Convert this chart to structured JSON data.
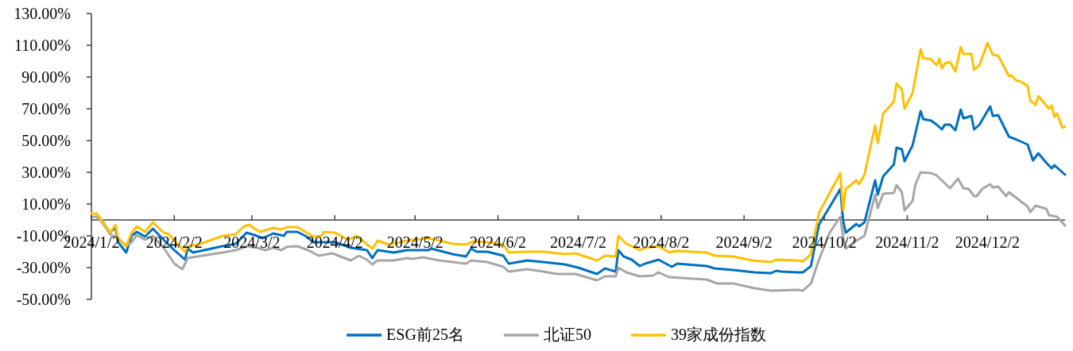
{
  "chart_data": {
    "type": "line",
    "xlim": [
      "2024-01-02",
      "2024-12-31"
    ],
    "xticks": [
      {
        "value": "2024-01-02",
        "label": "2024/1/2"
      },
      {
        "value": "2024-02-02",
        "label": "2024/2/2"
      },
      {
        "value": "2024-03-02",
        "label": "2024/3/2"
      },
      {
        "value": "2024-04-02",
        "label": "2024/4/2"
      },
      {
        "value": "2024-05-02",
        "label": "2024/5/2"
      },
      {
        "value": "2024-06-02",
        "label": "2024/6/2"
      },
      {
        "value": "2024-07-02",
        "label": "2024/7/2"
      },
      {
        "value": "2024-08-02",
        "label": "2024/8/2"
      },
      {
        "value": "2024-09-02",
        "label": "2024/9/2"
      },
      {
        "value": "2024-10-02",
        "label": "2024/10/2"
      },
      {
        "value": "2024-11-02",
        "label": "2024/11/2"
      },
      {
        "value": "2024-12-02",
        "label": "2024/12/2"
      }
    ],
    "ylim": [
      -50,
      130
    ],
    "yticks": [
      {
        "value": -50,
        "label": "-50.00%"
      },
      {
        "value": -30,
        "label": "-30.00%"
      },
      {
        "value": -10,
        "label": "-10.00%"
      },
      {
        "value": 10,
        "label": "10.00%"
      },
      {
        "value": 30,
        "label": "30.00%"
      },
      {
        "value": 50,
        "label": "50.00%"
      },
      {
        "value": 70,
        "label": "70.00%"
      },
      {
        "value": 90,
        "label": "90.00%"
      },
      {
        "value": 110,
        "label": "110.00%"
      },
      {
        "value": 130,
        "label": "130.00%"
      }
    ],
    "grid": false,
    "legend": "bottom",
    "marker": "none",
    "line_style": "solid",
    "series": [
      {
        "name": "ESG前25名",
        "color": "#0070c0",
        "x": [
          "2024-01-06",
          "2024-01-09",
          "2024-01-11",
          "2024-01-12",
          "2024-01-15",
          "2024-01-17",
          "2024-01-19",
          "2024-01-22",
          "2024-01-25",
          "2024-01-29",
          "2024-02-02",
          "2024-02-06",
          "2024-02-07",
          "2024-02-09",
          "2024-02-20",
          "2024-02-25",
          "2024-02-29",
          "2024-03-03",
          "2024-03-06",
          "2024-03-10",
          "2024-03-14",
          "2024-03-15",
          "2024-03-19",
          "2024-03-22",
          "2024-03-25",
          "2024-04-02",
          "2024-04-08",
          "2024-04-14",
          "2024-04-16",
          "2024-04-18",
          "2024-04-24",
          "2024-04-29",
          "2024-05-07",
          "2024-05-08",
          "2024-05-16",
          "2024-05-21",
          "2024-05-23",
          "2024-05-25",
          "2024-05-29",
          "2024-06-04",
          "2024-06-06",
          "2024-06-13",
          "2024-06-19",
          "2024-06-27",
          "2024-07-02",
          "2024-07-09",
          "2024-07-12",
          "2024-07-16",
          "2024-07-17",
          "2024-07-19",
          "2024-07-22",
          "2024-07-25",
          "2024-07-27",
          "2024-08-01",
          "2024-08-06",
          "2024-08-08",
          "2024-08-19",
          "2024-08-22",
          "2024-08-29",
          "2024-09-06",
          "2024-09-12",
          "2024-09-14",
          "2024-09-16",
          "2024-09-22",
          "2024-09-24",
          "2024-09-27",
          "2024-09-30",
          "2024-10-08",
          "2024-10-09",
          "2024-10-10",
          "2024-10-14",
          "2024-10-15",
          "2024-10-17",
          "2024-10-21",
          "2024-10-22",
          "2024-10-24",
          "2024-10-28",
          "2024-10-29",
          "2024-10-31",
          "2024-11-01",
          "2024-11-04",
          "2024-11-07",
          "2024-11-08",
          "2024-11-11",
          "2024-11-13",
          "2024-11-15",
          "2024-11-16",
          "2024-11-18",
          "2024-11-20",
          "2024-11-22",
          "2024-11-23",
          "2024-11-26",
          "2024-11-27",
          "2024-11-29",
          "2024-12-03",
          "2024-12-04",
          "2024-12-06",
          "2024-12-10",
          "2024-12-13",
          "2024-12-17",
          "2024-12-19",
          "2024-12-21",
          "2024-12-24",
          "2024-12-26",
          "2024-12-27",
          "2024-12-31"
        ],
        "values": [
          -0.5,
          -8,
          -4.5,
          -14,
          -20.5,
          -10,
          -7.5,
          -10.5,
          -5.5,
          -12.5,
          -19,
          -25,
          -18,
          -20.5,
          -16.5,
          -15,
          -8,
          -9.5,
          -11.5,
          -8.5,
          -10,
          -7.5,
          -7.5,
          -10,
          -14,
          -14,
          -17.5,
          -19,
          -24,
          -19,
          -20.5,
          -19,
          -19,
          -18,
          -21.5,
          -23,
          -18,
          -20,
          -20,
          -22.5,
          -27.5,
          -25.5,
          -26.5,
          -28,
          -30,
          -34,
          -30.5,
          -32.5,
          -19,
          -23,
          -25,
          -29,
          -27.5,
          -25,
          -29.5,
          -27.5,
          -29,
          -30.5,
          -31.5,
          -33,
          -33.5,
          -32,
          -32.5,
          -33,
          -33,
          -29,
          -3,
          19.5,
          0,
          -8,
          -2.5,
          -4,
          -1.5,
          25,
          16,
          27.5,
          35,
          45.5,
          44.5,
          37,
          47,
          68.5,
          63.5,
          62.5,
          60,
          57,
          60,
          60,
          56.5,
          69.5,
          64,
          65.5,
          57,
          60,
          71.5,
          65.5,
          66,
          52.5,
          50.5,
          47.5,
          37.5,
          42,
          36,
          32.5,
          34.5,
          28.5
        ]
      },
      {
        "name": "北证50",
        "color": "#a6a6a6",
        "x": [
          "2024-01-02",
          "2024-01-04",
          "2024-01-06",
          "2024-01-09",
          "2024-01-12",
          "2024-01-15",
          "2024-01-17",
          "2024-01-19",
          "2024-01-22",
          "2024-01-25",
          "2024-01-29",
          "2024-02-02",
          "2024-02-05",
          "2024-02-07",
          "2024-02-20",
          "2024-02-25",
          "2024-02-29",
          "2024-03-04",
          "2024-03-07",
          "2024-03-10",
          "2024-03-13",
          "2024-03-15",
          "2024-03-19",
          "2024-03-23",
          "2024-03-27",
          "2024-04-01",
          "2024-04-08",
          "2024-04-11",
          "2024-04-14",
          "2024-04-16",
          "2024-04-18",
          "2024-04-24",
          "2024-04-29",
          "2024-05-01",
          "2024-05-05",
          "2024-05-11",
          "2024-05-21",
          "2024-05-23",
          "2024-05-29",
          "2024-06-04",
          "2024-06-06",
          "2024-06-13",
          "2024-06-19",
          "2024-06-24",
          "2024-07-01",
          "2024-07-09",
          "2024-07-12",
          "2024-07-16",
          "2024-07-17",
          "2024-07-20",
          "2024-07-25",
          "2024-07-30",
          "2024-08-01",
          "2024-08-05",
          "2024-08-19",
          "2024-08-23",
          "2024-08-29",
          "2024-09-06",
          "2024-09-12",
          "2024-09-22",
          "2024-09-24",
          "2024-09-27",
          "2024-09-30",
          "2024-10-04",
          "2024-10-08",
          "2024-10-09",
          "2024-10-10",
          "2024-10-14",
          "2024-10-17",
          "2024-10-21",
          "2024-10-22",
          "2024-10-24",
          "2024-10-28",
          "2024-10-29",
          "2024-10-31",
          "2024-11-01",
          "2024-11-04",
          "2024-11-05",
          "2024-11-07",
          "2024-11-11",
          "2024-11-13",
          "2024-11-18",
          "2024-11-21",
          "2024-11-23",
          "2024-11-25",
          "2024-11-27",
          "2024-11-28",
          "2024-11-30",
          "2024-12-03",
          "2024-12-04",
          "2024-12-06",
          "2024-12-09",
          "2024-12-10",
          "2024-12-17",
          "2024-12-18",
          "2024-12-20",
          "2024-12-24",
          "2024-12-25",
          "2024-12-28",
          "2024-12-31"
        ],
        "values": [
          2,
          2,
          -1.5,
          -9,
          -11.5,
          -16.5,
          -14,
          -9.5,
          -12.5,
          -10,
          -17.5,
          -27.5,
          -31,
          -24,
          -20.5,
          -19,
          -16.5,
          -17.5,
          -19,
          -17.5,
          -19,
          -17,
          -16.5,
          -19,
          -22.5,
          -21,
          -25.5,
          -22.5,
          -25,
          -28,
          -25.5,
          -25.5,
          -24,
          -24.5,
          -23.5,
          -25.5,
          -27.5,
          -25.5,
          -26.5,
          -29.5,
          -32.5,
          -31,
          -32.5,
          -34,
          -34,
          -38,
          -35.5,
          -35.5,
          -30,
          -33,
          -35.5,
          -35,
          -33,
          -36,
          -37.5,
          -40,
          -40,
          -43,
          -44.5,
          -44,
          -44.5,
          -40,
          -25,
          -8,
          2,
          -10,
          -18,
          -13,
          -10,
          16,
          7.5,
          16.5,
          17,
          22,
          17.5,
          6,
          12,
          22,
          30,
          29.5,
          28,
          20,
          26,
          20,
          19.5,
          15,
          15,
          19.5,
          22.5,
          20.5,
          21,
          15,
          17.5,
          8.5,
          5,
          9,
          7,
          3,
          2,
          -3.5
        ]
      },
      {
        "name": "39家成份指数",
        "color": "#ffc000",
        "x": [
          "2024-01-02",
          "2024-01-04",
          "2024-01-06",
          "2024-01-09",
          "2024-01-11",
          "2024-01-12",
          "2024-01-15",
          "2024-01-17",
          "2024-01-19",
          "2024-01-22",
          "2024-01-25",
          "2024-01-29",
          "2024-01-31",
          "2024-02-02",
          "2024-02-06",
          "2024-02-07",
          "2024-02-11",
          "2024-02-20",
          "2024-02-25",
          "2024-02-28",
          "2024-03-01",
          "2024-03-03",
          "2024-03-05",
          "2024-03-10",
          "2024-03-13",
          "2024-03-15",
          "2024-03-19",
          "2024-03-22",
          "2024-03-25",
          "2024-03-28",
          "2024-03-29",
          "2024-04-02",
          "2024-04-07",
          "2024-04-10",
          "2024-04-16",
          "2024-04-18",
          "2024-04-22",
          "2024-04-29",
          "2024-05-07",
          "2024-05-10",
          "2024-05-16",
          "2024-05-21",
          "2024-05-24",
          "2024-05-29",
          "2024-06-04",
          "2024-06-06",
          "2024-06-12",
          "2024-06-19",
          "2024-06-27",
          "2024-07-01",
          "2024-07-09",
          "2024-07-12",
          "2024-07-16",
          "2024-07-17",
          "2024-07-20",
          "2024-07-25",
          "2024-07-27",
          "2024-08-01",
          "2024-08-05",
          "2024-08-08",
          "2024-08-19",
          "2024-08-22",
          "2024-08-29",
          "2024-09-05",
          "2024-09-12",
          "2024-09-14",
          "2024-09-22",
          "2024-09-24",
          "2024-09-27",
          "2024-09-30",
          "2024-10-08",
          "2024-10-09",
          "2024-10-10",
          "2024-10-14",
          "2024-10-15",
          "2024-10-17",
          "2024-10-21",
          "2024-10-22",
          "2024-10-24",
          "2024-10-28",
          "2024-10-29",
          "2024-10-31",
          "2024-11-01",
          "2024-11-04",
          "2024-11-07",
          "2024-11-08",
          "2024-11-11",
          "2024-11-13",
          "2024-11-14",
          "2024-11-15",
          "2024-11-16",
          "2024-11-18",
          "2024-11-20",
          "2024-11-22",
          "2024-11-23",
          "2024-11-26",
          "2024-11-27",
          "2024-11-29",
          "2024-12-02",
          "2024-12-04",
          "2024-12-06",
          "2024-12-10",
          "2024-12-11",
          "2024-12-13",
          "2024-12-14",
          "2024-12-17",
          "2024-12-18",
          "2024-12-20",
          "2024-12-21",
          "2024-12-25",
          "2024-12-26",
          "2024-12-27",
          "2024-12-28",
          "2024-12-30",
          "2024-12-31"
        ],
        "values": [
          4,
          4,
          -0.5,
          -8,
          -3,
          -11.5,
          -16.5,
          -8,
          -4,
          -7.5,
          -1.5,
          -8,
          -9,
          -13,
          -20,
          -16.5,
          -15.5,
          -10,
          -9,
          -4,
          -3,
          -5.5,
          -7.5,
          -5,
          -6,
          -4.5,
          -4.5,
          -7.5,
          -10.5,
          -10,
          -7.5,
          -8,
          -12.5,
          -10,
          -18,
          -13,
          -15.5,
          -13,
          -11.5,
          -12.5,
          -15,
          -15.5,
          -13.5,
          -14,
          -15.5,
          -20.5,
          -20,
          -20,
          -21.5,
          -21,
          -25.5,
          -22.5,
          -23,
          -10,
          -15,
          -19,
          -17.5,
          -16.5,
          -20.5,
          -19.5,
          -20.5,
          -22.5,
          -23,
          -25.5,
          -26.5,
          -25,
          -25.5,
          -26,
          -21.5,
          4.5,
          29.5,
          6,
          19.5,
          25,
          22.5,
          28.5,
          59.5,
          48.5,
          67,
          74.5,
          86,
          82,
          70,
          80,
          107.5,
          102,
          101,
          97.5,
          101.5,
          95.5,
          98.5,
          99.5,
          93.5,
          109,
          104.5,
          104.5,
          94.5,
          97.5,
          111.5,
          104,
          103.5,
          90.5,
          91,
          87.5,
          87.5,
          84.5,
          75,
          72.5,
          78,
          70,
          72,
          65,
          67,
          58,
          59
        ]
      }
    ]
  }
}
